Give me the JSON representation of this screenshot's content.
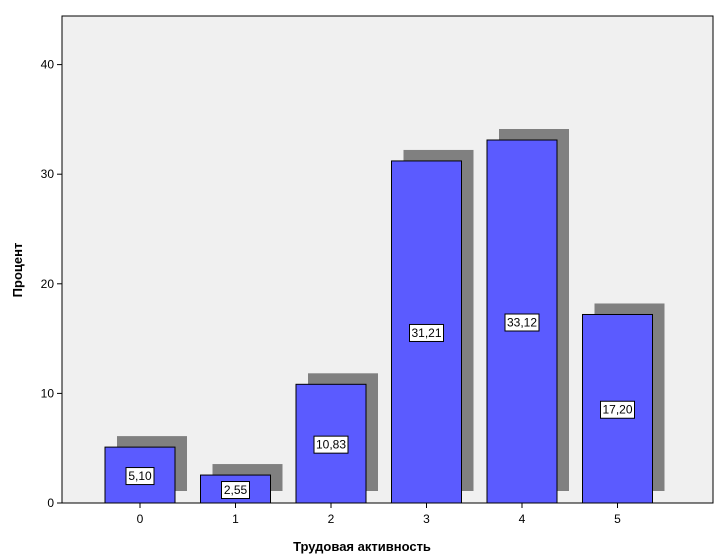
{
  "chart_data": {
    "type": "bar",
    "categories": [
      "0",
      "1",
      "2",
      "3",
      "4",
      "5"
    ],
    "values": [
      5.1,
      2.55,
      10.83,
      31.21,
      33.12,
      17.2
    ],
    "data_labels": [
      "5,10",
      "2,55",
      "10,83",
      "31,21",
      "33,12",
      "17,20"
    ],
    "title": "",
    "xlabel": "Трудовая активность",
    "ylabel": "Процент",
    "ylim": [
      0,
      44
    ],
    "yticks": [
      0,
      10,
      20,
      30,
      40
    ],
    "ytick_labels": [
      "0",
      "10",
      "20",
      "30",
      "40"
    ],
    "grid": false,
    "shadow": true,
    "colors": {
      "bar": "#5b5bff",
      "shadow": "#808080",
      "plot_background": "#f0f0f0",
      "label_box": "#ffffff"
    }
  }
}
